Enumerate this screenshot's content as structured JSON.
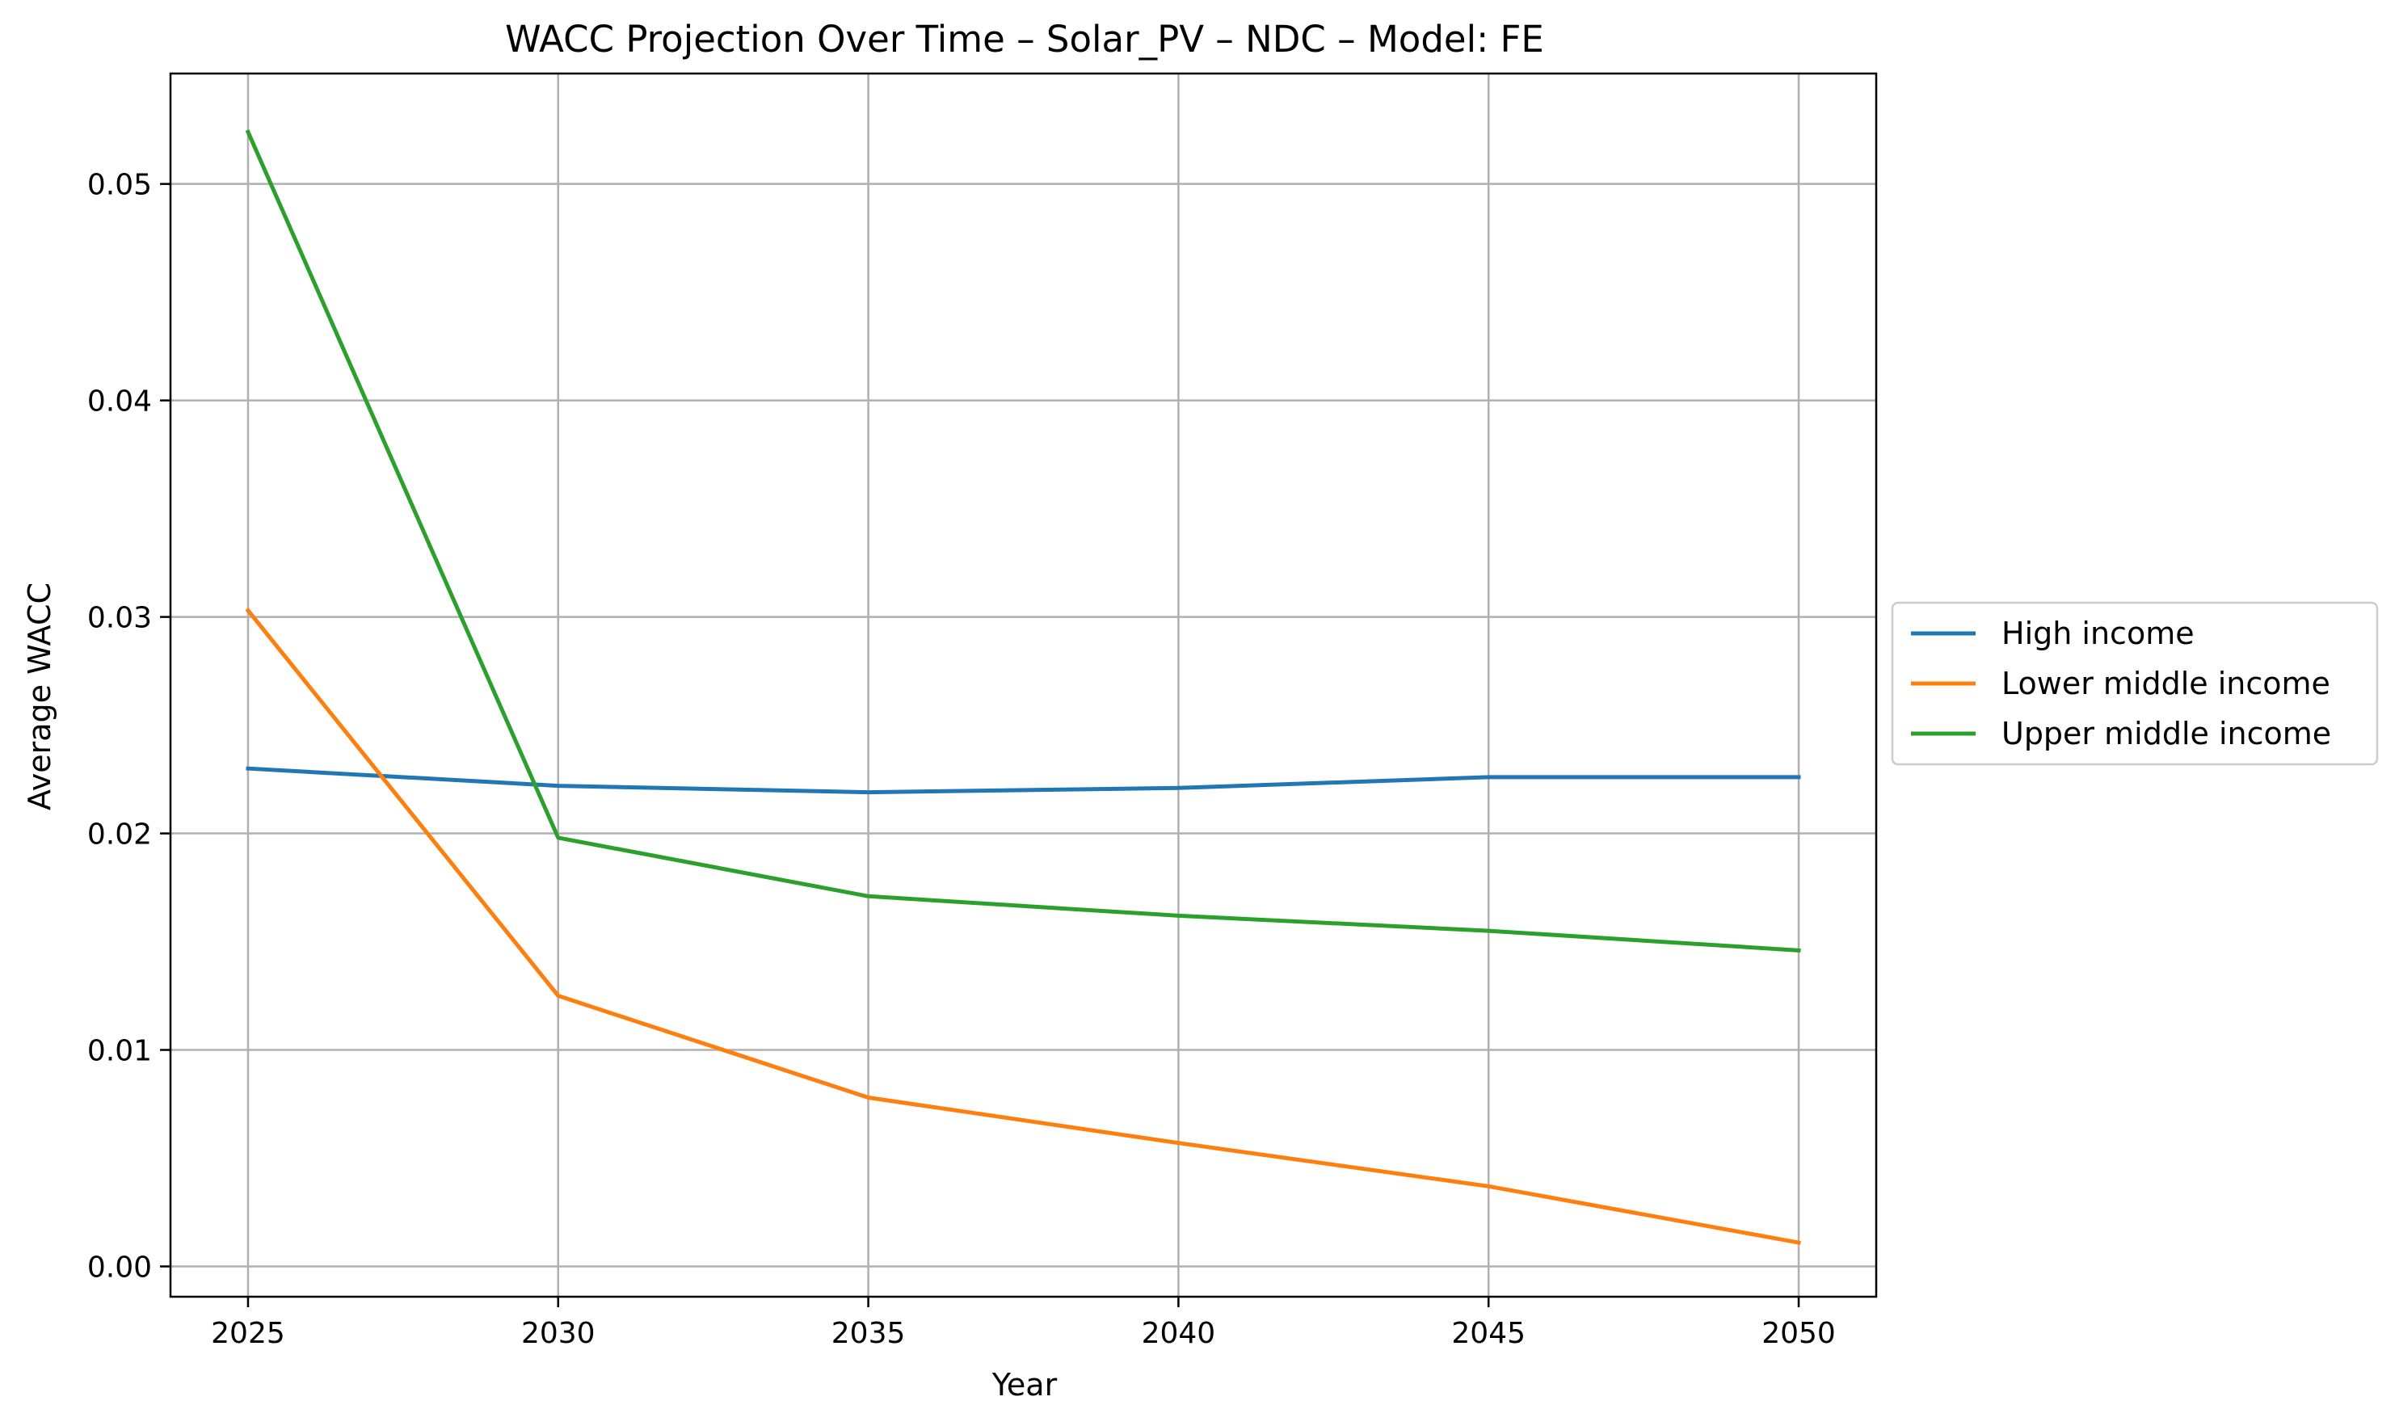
{
  "chart_data": {
    "type": "line",
    "title": "WACC Projection Over Time – Solar_PV – NDC – Model: FE",
    "xlabel": "Year",
    "ylabel": "Average WACC",
    "x": [
      2025,
      2030,
      2035,
      2040,
      2045,
      2050
    ],
    "xlim": [
      2023.75,
      2051.25
    ],
    "ylim": [
      -0.0014,
      0.0551
    ],
    "xticks": [
      2025,
      2030,
      2035,
      2040,
      2045,
      2050
    ],
    "yticks": [
      0.0,
      0.01,
      0.02,
      0.03,
      0.04,
      0.05
    ],
    "ytick_labels": [
      "0.00",
      "0.01",
      "0.02",
      "0.03",
      "0.04",
      "0.05"
    ],
    "grid": true,
    "legend_position": "outside-right",
    "series": [
      {
        "name": "High income",
        "color": "#1f77b4",
        "values": [
          0.023,
          0.0222,
          0.0219,
          0.0221,
          0.0226,
          0.0226
        ]
      },
      {
        "name": "Lower middle income",
        "color": "#ff7f0e",
        "values": [
          0.0303,
          0.0125,
          0.0078,
          0.0057,
          0.0037,
          0.0011
        ]
      },
      {
        "name": "Upper middle income",
        "color": "#2ca02c",
        "values": [
          0.0524,
          0.0198,
          0.0171,
          0.0162,
          0.0155,
          0.0146
        ]
      }
    ]
  }
}
